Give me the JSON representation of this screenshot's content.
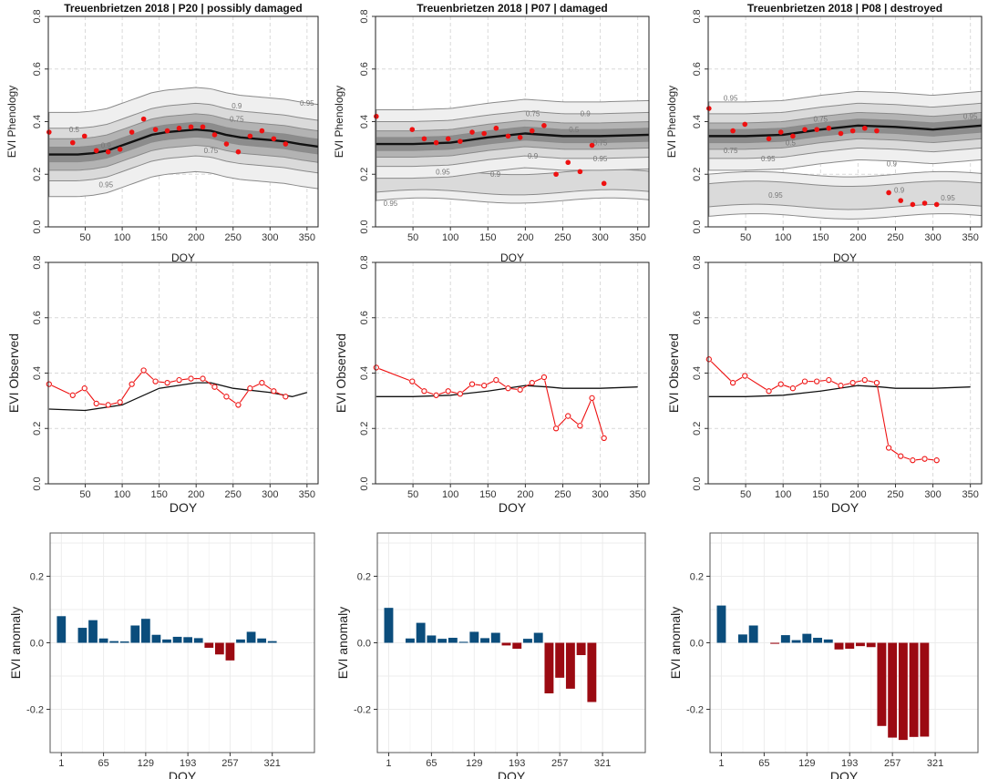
{
  "chart_data": [
    {
      "type": "line",
      "name": "p20-phenology",
      "title": "Treuenbrietzen 2018 | P20 | possibly damaged",
      "xlabel": "DOY",
      "ylabel": "EVI Phenology",
      "xlim": [
        0,
        365
      ],
      "ylim": [
        0,
        0.8
      ],
      "xticks": [
        "50",
        "100",
        "150",
        "200",
        "250",
        "300",
        "350"
      ],
      "yticks": [
        "0.0",
        "0.2",
        "0.4",
        "0.6",
        "0.8"
      ],
      "contour_labels": [
        "0.95",
        "0.9",
        "0.75",
        "0.5",
        "0.75",
        "0.9",
        "0.95"
      ],
      "median_x": [
        1,
        20,
        40,
        60,
        80,
        100,
        120,
        140,
        160,
        180,
        200,
        220,
        240,
        260,
        280,
        300,
        320,
        340,
        365
      ],
      "median_y": [
        0.275,
        0.275,
        0.275,
        0.28,
        0.29,
        0.31,
        0.33,
        0.35,
        0.36,
        0.365,
        0.37,
        0.365,
        0.35,
        0.34,
        0.335,
        0.33,
        0.325,
        0.315,
        0.305
      ],
      "x": [
        1,
        33,
        49,
        65,
        81,
        97,
        113,
        129,
        145,
        161,
        177,
        193,
        209,
        225,
        241,
        257,
        273,
        289,
        305,
        321
      ],
      "y": [
        0.36,
        0.32,
        0.345,
        0.29,
        0.285,
        0.295,
        0.36,
        0.41,
        0.37,
        0.365,
        0.375,
        0.38,
        0.38,
        0.35,
        0.315,
        0.285,
        0.345,
        0.365,
        0.335,
        0.315
      ]
    },
    {
      "type": "line",
      "name": "p07-phenology",
      "title": "Treuenbrietzen 2018 | P07 | damaged",
      "xlabel": "DOY",
      "ylabel": "EVI Phenology",
      "xlim": [
        0,
        365
      ],
      "ylim": [
        0,
        0.8
      ],
      "xticks": [
        "50",
        "100",
        "150",
        "200",
        "250",
        "300",
        "350"
      ],
      "yticks": [
        "0.0",
        "0.2",
        "0.4",
        "0.6",
        "0.8"
      ],
      "contour_labels": [
        "0.75",
        "0.9",
        "0.5",
        "0.75",
        "0.9",
        "0.95",
        "0.95",
        "0.9",
        "0.95"
      ],
      "median_x": [
        1,
        50,
        100,
        150,
        200,
        250,
        300,
        365
      ],
      "median_y": [
        0.315,
        0.315,
        0.32,
        0.34,
        0.355,
        0.345,
        0.345,
        0.35
      ],
      "x": [
        1,
        49,
        65,
        81,
        97,
        113,
        129,
        145,
        161,
        177,
        193,
        209,
        225,
        241,
        257,
        273,
        289,
        305
      ],
      "y": [
        0.42,
        0.37,
        0.335,
        0.32,
        0.335,
        0.325,
        0.36,
        0.355,
        0.375,
        0.345,
        0.34,
        0.365,
        0.385,
        0.2,
        0.245,
        0.21,
        0.31,
        0.165
      ]
    },
    {
      "type": "line",
      "name": "p08-phenology",
      "title": "Treuenbrietzen 2018 | P08 | destroyed",
      "xlabel": "DOY",
      "ylabel": "EVI Phenology",
      "xlim": [
        0,
        365
      ],
      "ylim": [
        0,
        0.8
      ],
      "xticks": [
        "50",
        "100",
        "150",
        "200",
        "250",
        "300",
        "350"
      ],
      "yticks": [
        "0.0",
        "0.2",
        "0.4",
        "0.6",
        "0.8"
      ],
      "contour_labels": [
        "0.95",
        "0.75",
        "0.75",
        "0.5",
        "0.95",
        "0.95",
        "0.9",
        "0.95",
        "0.9",
        "0.95"
      ],
      "median_x": [
        1,
        50,
        100,
        150,
        200,
        250,
        300,
        365
      ],
      "median_y": [
        0.345,
        0.345,
        0.35,
        0.37,
        0.385,
        0.38,
        0.37,
        0.385
      ],
      "x": [
        1,
        33,
        49,
        81,
        97,
        113,
        129,
        145,
        161,
        177,
        193,
        209,
        225,
        241,
        257,
        273,
        289,
        305
      ],
      "y": [
        0.45,
        0.365,
        0.39,
        0.335,
        0.36,
        0.345,
        0.37,
        0.37,
        0.375,
        0.355,
        0.365,
        0.375,
        0.365,
        0.13,
        0.1,
        0.085,
        0.09,
        0.085
      ]
    },
    {
      "type": "line",
      "name": "p20-observed",
      "xlabel": "DOY",
      "ylabel": "EVI Observed",
      "xlim": [
        0,
        365
      ],
      "ylim": [
        0,
        0.8
      ],
      "xticks": [
        "50",
        "100",
        "150",
        "200",
        "250",
        "300",
        "350"
      ],
      "yticks": [
        "0.0",
        "0.2",
        "0.4",
        "0.6",
        "0.8"
      ],
      "model_x": [
        1,
        50,
        100,
        150,
        200,
        220,
        250,
        300,
        330,
        350
      ],
      "model_y": [
        0.27,
        0.265,
        0.285,
        0.345,
        0.365,
        0.365,
        0.345,
        0.33,
        0.315,
        0.33
      ],
      "x": [
        1,
        33,
        49,
        65,
        81,
        97,
        113,
        129,
        145,
        161,
        177,
        193,
        209,
        225,
        241,
        257,
        273,
        289,
        305,
        321
      ],
      "y": [
        0.36,
        0.32,
        0.345,
        0.29,
        0.285,
        0.295,
        0.36,
        0.41,
        0.37,
        0.365,
        0.375,
        0.38,
        0.38,
        0.35,
        0.315,
        0.285,
        0.345,
        0.365,
        0.335,
        0.315
      ]
    },
    {
      "type": "line",
      "name": "p07-observed",
      "xlabel": "DOY",
      "ylabel": "EVI Observed",
      "xlim": [
        0,
        365
      ],
      "ylim": [
        0,
        0.8
      ],
      "xticks": [
        "50",
        "100",
        "150",
        "200",
        "250",
        "300",
        "350"
      ],
      "yticks": [
        "0.0",
        "0.2",
        "0.4",
        "0.6",
        "0.8"
      ],
      "model_x": [
        1,
        50,
        100,
        150,
        200,
        230,
        250,
        300,
        350
      ],
      "model_y": [
        0.315,
        0.315,
        0.32,
        0.335,
        0.355,
        0.35,
        0.345,
        0.345,
        0.35
      ],
      "x": [
        1,
        49,
        65,
        81,
        97,
        113,
        129,
        145,
        161,
        177,
        193,
        209,
        225,
        241,
        257,
        273,
        289,
        305
      ],
      "y": [
        0.42,
        0.37,
        0.335,
        0.32,
        0.335,
        0.325,
        0.36,
        0.355,
        0.375,
        0.345,
        0.34,
        0.365,
        0.385,
        0.2,
        0.245,
        0.21,
        0.31,
        0.165
      ]
    },
    {
      "type": "line",
      "name": "p08-observed",
      "xlabel": "DOY",
      "ylabel": "EVI Observed",
      "xlim": [
        0,
        365
      ],
      "ylim": [
        0,
        0.8
      ],
      "xticks": [
        "50",
        "100",
        "150",
        "200",
        "250",
        "300",
        "350"
      ],
      "yticks": [
        "0.0",
        "0.2",
        "0.4",
        "0.6",
        "0.8"
      ],
      "model_x": [
        1,
        50,
        100,
        150,
        200,
        230,
        250,
        300,
        350
      ],
      "model_y": [
        0.315,
        0.315,
        0.32,
        0.335,
        0.355,
        0.35,
        0.345,
        0.345,
        0.35
      ],
      "x": [
        1,
        33,
        49,
        81,
        97,
        113,
        129,
        145,
        161,
        177,
        193,
        209,
        225,
        241,
        257,
        273,
        289,
        305
      ],
      "y": [
        0.45,
        0.365,
        0.39,
        0.335,
        0.36,
        0.345,
        0.37,
        0.37,
        0.375,
        0.355,
        0.365,
        0.375,
        0.365,
        0.13,
        0.1,
        0.085,
        0.09,
        0.085
      ]
    },
    {
      "type": "bar",
      "name": "p20-anomaly",
      "xlabel": "DOY",
      "ylabel": "EVI anomaly",
      "xlim": [
        -16,
        385
      ],
      "ylim": [
        -0.33,
        0.33
      ],
      "xticks": [
        "1",
        "65",
        "129",
        "193",
        "257",
        "321"
      ],
      "yticks": [
        "-0.2",
        "0.0",
        "0.2"
      ],
      "x": [
        1,
        33,
        49,
        65,
        81,
        97,
        113,
        129,
        145,
        161,
        177,
        193,
        209,
        225,
        241,
        257,
        273,
        289,
        305,
        321
      ],
      "values": [
        0.08,
        0.045,
        0.068,
        0.013,
        0.005,
        0.004,
        0.052,
        0.072,
        0.024,
        0.01,
        0.018,
        0.017,
        0.014,
        -0.015,
        -0.035,
        -0.053,
        0.01,
        0.033,
        0.013,
        0.005
      ]
    },
    {
      "type": "bar",
      "name": "p07-anomaly",
      "xlabel": "DOY",
      "ylabel": "EVI anomaly",
      "xlim": [
        -16,
        385
      ],
      "ylim": [
        -0.33,
        0.33
      ],
      "xticks": [
        "1",
        "65",
        "129",
        "193",
        "257",
        "321"
      ],
      "yticks": [
        "-0.2",
        "0.0",
        "0.2"
      ],
      "x": [
        1,
        33,
        49,
        65,
        81,
        97,
        113,
        129,
        145,
        161,
        177,
        193,
        209,
        225,
        241,
        257,
        273,
        289,
        305
      ],
      "values": [
        0.105,
        0.013,
        0.06,
        0.022,
        0.012,
        0.015,
        0.003,
        0.033,
        0.014,
        0.03,
        -0.008,
        -0.018,
        0.012,
        0.03,
        -0.152,
        -0.105,
        -0.138,
        -0.037,
        -0.178
      ]
    },
    {
      "type": "bar",
      "name": "p08-anomaly",
      "xlabel": "DOY",
      "ylabel": "EVI anomaly",
      "xlim": [
        -16,
        385
      ],
      "ylim": [
        -0.33,
        0.33
      ],
      "xticks": [
        "1",
        "65",
        "129",
        "193",
        "257",
        "321"
      ],
      "yticks": [
        "-0.2",
        "0.0",
        "0.2"
      ],
      "x": [
        1,
        33,
        49,
        81,
        97,
        113,
        129,
        145,
        161,
        177,
        193,
        209,
        225,
        241,
        257,
        273,
        289,
        305
      ],
      "values": [
        0.112,
        0.025,
        0.052,
        -0.003,
        0.023,
        0.008,
        0.027,
        0.015,
        0.01,
        -0.02,
        -0.018,
        -0.01,
        -0.013,
        -0.25,
        -0.285,
        -0.292,
        -0.283,
        -0.282
      ]
    }
  ],
  "colors": {
    "observed": "#ee1111",
    "median": "#111111",
    "positive": "#0b4d7c",
    "negative": "#9b0a12",
    "band_outer": "#efefef",
    "band_mid": "#dadada",
    "band_inner": "#b3b3b3",
    "band_core": "#8c8c8c",
    "contour_line": "#8a8a8a"
  }
}
